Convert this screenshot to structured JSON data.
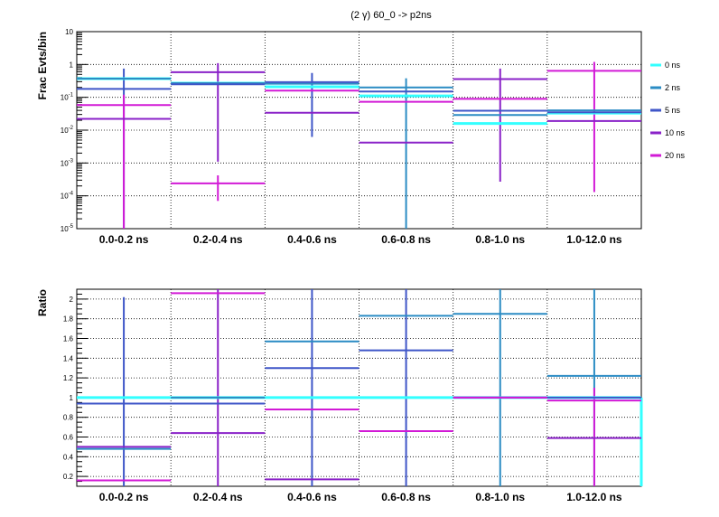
{
  "title": "(2 γ) 60_0 -> p2ns",
  "colors": {
    "0 ns": "#33ffff",
    "2 ns": "#2b8cc4",
    "5 ns": "#3f56c8",
    "10 ns": "#8a22c8",
    "20 ns": "#d21ad6"
  },
  "legend": [
    "0 ns",
    "2 ns",
    "5 ns",
    "10 ns",
    "20 ns"
  ],
  "chart_data": [
    {
      "type": "histogram",
      "ylabel": "Frac Evts/bin",
      "yscale": "log",
      "ylim": [
        1e-05,
        10
      ],
      "yticks": [
        "10^-5",
        "10^-4",
        "10^-3",
        "10^-2",
        "10^-1",
        "1",
        "10"
      ],
      "categories": [
        "0.0-0.2 ns",
        "0.2-0.4 ns",
        "0.4-0.6 ns",
        "0.6-0.8 ns",
        "0.8-1.0 ns",
        "1.0-12.0 ns"
      ],
      "series": [
        {
          "name": "0 ns",
          "values": [
            0.37,
            0.27,
            0.21,
            0.11,
            0.016,
            0.033
          ]
        },
        {
          "name": "2 ns",
          "values": [
            0.37,
            0.27,
            0.26,
            0.2,
            0.029,
            0.04
          ]
        },
        {
          "name": "5 ns",
          "values": [
            0.18,
            0.25,
            0.29,
            0.15,
            0.039,
            0.035
          ]
        },
        {
          "name": "10 ns",
          "values": [
            0.022,
            0.58,
            0.034,
            0.0042,
            0.36,
            0.019
          ]
        },
        {
          "name": "20 ns",
          "values": [
            0.058,
            0.00024,
            0.16,
            0.073,
            0.09,
            0.64
          ]
        }
      ],
      "error_bars": [
        {
          "series": "5 ns",
          "bin": 0,
          "low": 1e-05,
          "high": 0.75
        },
        {
          "series": "10 ns",
          "bin": 1,
          "low": 0.0011,
          "high": 1.1
        },
        {
          "series": "20 ns",
          "bin": 1,
          "low": 7e-05,
          "high": 0.00042
        },
        {
          "series": "5 ns",
          "bin": 2,
          "low": 0.0062,
          "high": 0.55
        },
        {
          "series": "2 ns",
          "bin": 3,
          "low": 1e-05,
          "high": 0.38
        },
        {
          "series": "10 ns",
          "bin": 4,
          "low": 0.00027,
          "high": 0.75
        },
        {
          "series": "20 ns",
          "bin": 5,
          "low": 0.00013,
          "high": 1.2
        },
        {
          "series": "20 ns",
          "bin": 0,
          "low": 1e-05,
          "high": 0.12
        }
      ]
    },
    {
      "type": "histogram",
      "ylabel": "Ratio",
      "ylim": [
        0.1,
        2.1
      ],
      "yticks": [
        "0.2",
        "0.4",
        "0.6",
        "0.8",
        "1",
        "1.2",
        "1.4",
        "1.6",
        "1.8",
        "2"
      ],
      "categories": [
        "0.0-0.2 ns",
        "0.2-0.4 ns",
        "0.4-0.6 ns",
        "0.6-0.8 ns",
        "0.8-1.0 ns",
        "1.0-12.0 ns"
      ],
      "series": [
        {
          "name": "0 ns",
          "values": [
            1.0,
            1.0,
            1.0,
            1.0,
            1.0,
            1.0
          ]
        },
        {
          "name": "2 ns",
          "values": [
            0.48,
            1.0,
            1.57,
            1.83,
            1.85,
            1.22
          ]
        },
        {
          "name": "5 ns",
          "values": [
            0.94,
            0.94,
            1.3,
            1.48,
            1.0,
            1.0
          ]
        },
        {
          "name": "10 ns",
          "values": [
            0.5,
            0.64,
            0.17,
            0.66,
            1.0,
            0.59
          ]
        },
        {
          "name": "20 ns",
          "values": [
            0.16,
            2.06,
            0.88,
            0.66,
            1.0,
            0.97
          ]
        }
      ],
      "error_bars": [
        {
          "series": "5 ns",
          "bin": 0,
          "low": 0.1,
          "high": 2.02
        },
        {
          "series": "10 ns",
          "bin": 1,
          "low": 0.1,
          "high": 2.1
        },
        {
          "series": "5 ns",
          "bin": 2,
          "low": 0.1,
          "high": 2.1
        },
        {
          "series": "5 ns",
          "bin": 3,
          "low": 0.1,
          "high": 2.1
        },
        {
          "series": "2 ns",
          "bin": 4,
          "low": 0.1,
          "high": 2.1
        },
        {
          "series": "2 ns",
          "bin": 5,
          "low": 0.1,
          "high": 2.1
        },
        {
          "series": "20 ns",
          "bin": 5,
          "low": 0.1,
          "high": 1.1
        }
      ]
    }
  ]
}
